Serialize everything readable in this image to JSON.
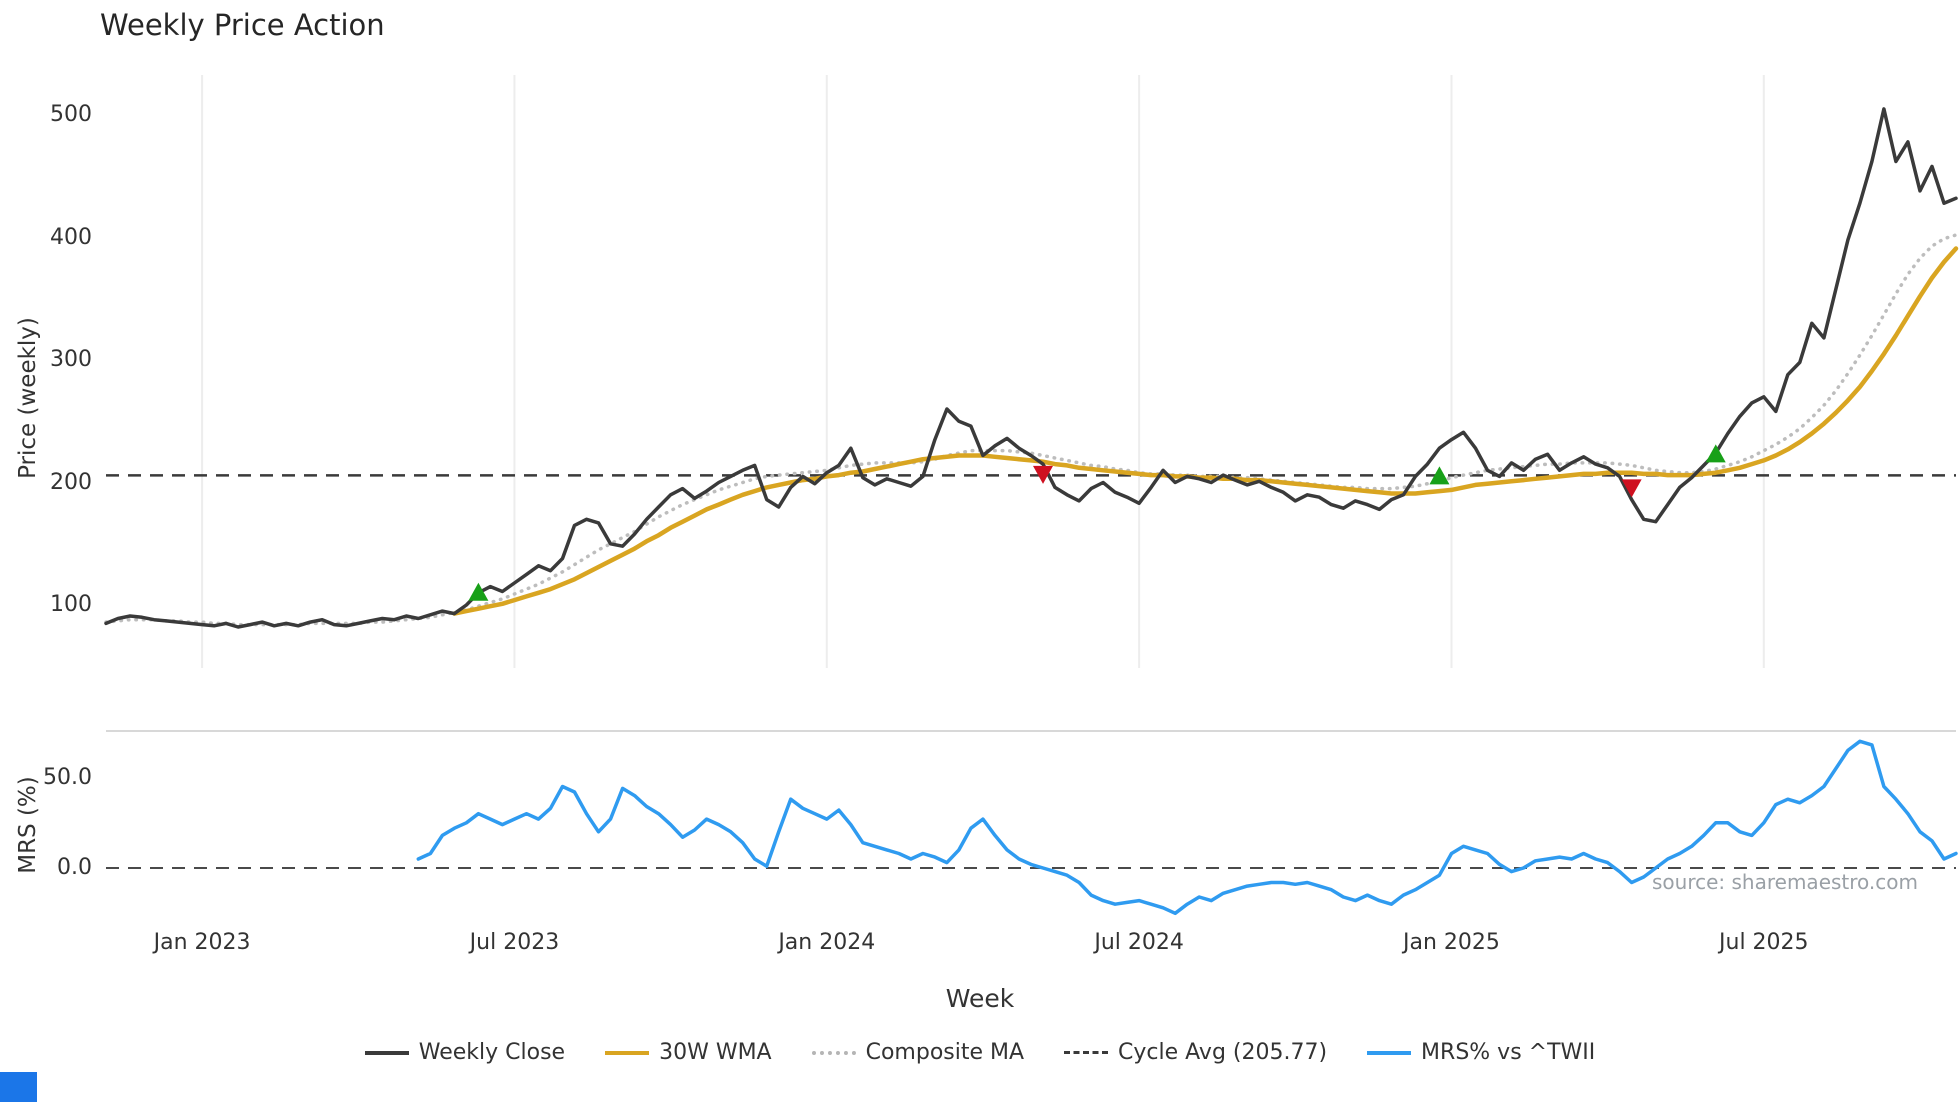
{
  "title": "Weekly Price Action",
  "xlabel": "Week",
  "source": "source: sharemaestro.com",
  "legend": [
    {
      "label": "Weekly Close",
      "color": "#3a3a3a",
      "line": "solid"
    },
    {
      "label": "30W WMA",
      "color": "#d9a521",
      "line": "solid"
    },
    {
      "label": "Composite MA",
      "color": "#b5b5b5",
      "line": "dotted"
    },
    {
      "label": "Cycle Avg (205.77)",
      "color": "#3a3a3a",
      "line": "dashed"
    },
    {
      "label": "MRS% vs ^TWII",
      "color": "#2f9bf0",
      "line": "solid"
    }
  ],
  "colors": {
    "weekly_close": "#3a3a3a",
    "wma": "#d9a521",
    "composite": "#bdbdbd",
    "cycle_avg": "#3a3a3a",
    "mrs": "#2f9bf0",
    "buy": "#18a018",
    "sell": "#cf1020",
    "grid": "#ededed"
  },
  "chart_data": {
    "type": "line",
    "title": "Weekly Price Action",
    "x_unit": "weekly bars, Nov 2022 - Oct 2025",
    "week_index_range": [
      0,
      154
    ],
    "x_ticks": [
      {
        "label": "Jan 2023",
        "week": 8
      },
      {
        "label": "Jul 2023",
        "week": 34
      },
      {
        "label": "Jan 2024",
        "week": 60
      },
      {
        "label": "Jul 2024",
        "week": 86
      },
      {
        "label": "Jan 2025",
        "week": 112
      },
      {
        "label": "Jul 2025",
        "week": 138
      }
    ],
    "price_panel": {
      "ylabel": "Price (weekly)",
      "ylim": [
        50,
        535
      ],
      "y_ticks": [
        100,
        200,
        300,
        400,
        500
      ],
      "cycle_avg": 205.77,
      "series": [
        {
          "name": "Weekly Close",
          "start_week": 0,
          "values": [
            85,
            89,
            91,
            90,
            88,
            87,
            86,
            85,
            84,
            83,
            85,
            82,
            84,
            86,
            83,
            85,
            83,
            86,
            88,
            84,
            83,
            85,
            87,
            89,
            88,
            91,
            89,
            92,
            95,
            93,
            100,
            110,
            115,
            111,
            118,
            125,
            132,
            128,
            138,
            165,
            170,
            167,
            150,
            148,
            158,
            170,
            180,
            190,
            195,
            187,
            193,
            200,
            205,
            210,
            214,
            186,
            180,
            196,
            205,
            199,
            208,
            214,
            228,
            204,
            198,
            203,
            200,
            197,
            205,
            235,
            260,
            250,
            246,
            222,
            230,
            236,
            228,
            222,
            215,
            196,
            190,
            185,
            195,
            200,
            192,
            188,
            183,
            196,
            210,
            200,
            205,
            203,
            200,
            206,
            202,
            198,
            201,
            196,
            192,
            185,
            190,
            188,
            182,
            179,
            185,
            182,
            178,
            186,
            190,
            205,
            215,
            228,
            235,
            241,
            228,
            210,
            205,
            216,
            210,
            219,
            223,
            210,
            216,
            221,
            215,
            212,
            205,
            186,
            170,
            168,
            182,
            196,
            204,
            214,
            224,
            240,
            254,
            265,
            270,
            258,
            288,
            298,
            330,
            318,
            358,
            398,
            428,
            462,
            505,
            462,
            478,
            438,
            458,
            428,
            432
          ]
        },
        {
          "name": "30W WMA",
          "start_week": 29,
          "values": [
            93,
            95,
            97,
            99,
            101,
            104,
            107,
            110,
            113,
            117,
            121,
            126,
            131,
            136,
            141,
            146,
            152,
            157,
            163,
            168,
            173,
            178,
            182,
            186,
            190,
            193,
            196,
            198,
            200,
            202,
            203,
            205,
            206,
            208,
            209,
            211,
            213,
            215,
            217,
            219,
            220,
            221,
            222,
            222,
            222,
            221,
            220,
            219,
            218,
            217,
            215,
            214,
            212,
            211,
            210,
            209,
            208,
            207,
            206,
            206,
            205,
            205,
            204,
            204,
            203,
            203,
            202,
            202,
            201,
            200,
            199,
            198,
            197,
            196,
            195,
            194,
            193,
            192,
            191,
            191,
            191,
            192,
            193,
            194,
            196,
            198,
            199,
            200,
            201,
            202,
            203,
            204,
            205,
            206,
            207,
            207,
            208,
            208,
            208,
            207,
            207,
            206,
            206,
            206,
            207,
            208,
            210,
            212,
            215,
            218,
            222,
            227,
            233,
            240,
            248,
            257,
            267,
            278,
            291,
            305,
            320,
            336,
            352,
            367,
            380,
            391
          ]
        },
        {
          "name": "Composite MA",
          "start_week": 0,
          "values": [
            86,
            87,
            88,
            88,
            88,
            87,
            87,
            86,
            86,
            85,
            85,
            84,
            84,
            84,
            84,
            84,
            84,
            85,
            85,
            85,
            85,
            85,
            86,
            86,
            87,
            88,
            89,
            90,
            92,
            94,
            96,
            99,
            102,
            105,
            109,
            113,
            117,
            122,
            127,
            133,
            139,
            145,
            150,
            155,
            160,
            166,
            172,
            177,
            182,
            186,
            190,
            194,
            197,
            200,
            203,
            205,
            206,
            207,
            208,
            209,
            210,
            212,
            214,
            215,
            216,
            216,
            216,
            216,
            217,
            219,
            222,
            224,
            226,
            226,
            226,
            226,
            225,
            224,
            222,
            220,
            218,
            216,
            214,
            213,
            211,
            210,
            208,
            207,
            207,
            206,
            206,
            205,
            205,
            205,
            204,
            204,
            203,
            202,
            201,
            200,
            199,
            198,
            197,
            196,
            196,
            195,
            195,
            195,
            196,
            197,
            199,
            201,
            204,
            206,
            208,
            210,
            211,
            212,
            213,
            214,
            215,
            215,
            216,
            216,
            216,
            216,
            215,
            214,
            212,
            210,
            209,
            208,
            208,
            209,
            211,
            214,
            217,
            221,
            226,
            231,
            237,
            244,
            253,
            263,
            275,
            289,
            304,
            320,
            337,
            354,
            370,
            383,
            393,
            399,
            402
          ]
        }
      ],
      "signals": [
        {
          "type": "buy",
          "week": 31,
          "price": 110
        },
        {
          "type": "sell",
          "week": 78,
          "price": 207
        },
        {
          "type": "buy",
          "week": 111,
          "price": 205
        },
        {
          "type": "sell",
          "week": 127,
          "price": 196
        },
        {
          "type": "buy",
          "week": 134,
          "price": 223
        }
      ]
    },
    "mrs_panel": {
      "ylabel": "MRS (%)",
      "ylim": [
        -30,
        80
      ],
      "y_ticks": [
        0,
        50
      ],
      "zero_line": 0,
      "series": [
        {
          "name": "MRS% vs ^TWII",
          "start_week": 26,
          "values": [
            5,
            8,
            18,
            22,
            25,
            30,
            27,
            24,
            27,
            30,
            27,
            33,
            45,
            42,
            30,
            20,
            27,
            44,
            40,
            34,
            30,
            24,
            17,
            21,
            27,
            24,
            20,
            14,
            5,
            1,
            20,
            38,
            33,
            30,
            27,
            32,
            24,
            14,
            12,
            10,
            8,
            5,
            8,
            6,
            3,
            10,
            22,
            27,
            18,
            10,
            5,
            2,
            0,
            -2,
            -4,
            -8,
            -15,
            -18,
            -20,
            -19,
            -18,
            -20,
            -22,
            -25,
            -20,
            -16,
            -18,
            -14,
            -12,
            -10,
            -9,
            -8,
            -8,
            -9,
            -8,
            -10,
            -12,
            -16,
            -18,
            -15,
            -18,
            -20,
            -15,
            -12,
            -8,
            -4,
            8,
            12,
            10,
            8,
            2,
            -2,
            0,
            4,
            5,
            6,
            5,
            8,
            5,
            3,
            -2,
            -8,
            -5,
            0,
            5,
            8,
            12,
            18,
            25,
            25,
            20,
            18,
            25,
            35,
            38,
            36,
            40,
            45,
            55,
            65,
            70,
            68,
            45,
            38,
            30,
            20,
            15,
            5,
            8
          ]
        }
      ]
    }
  }
}
